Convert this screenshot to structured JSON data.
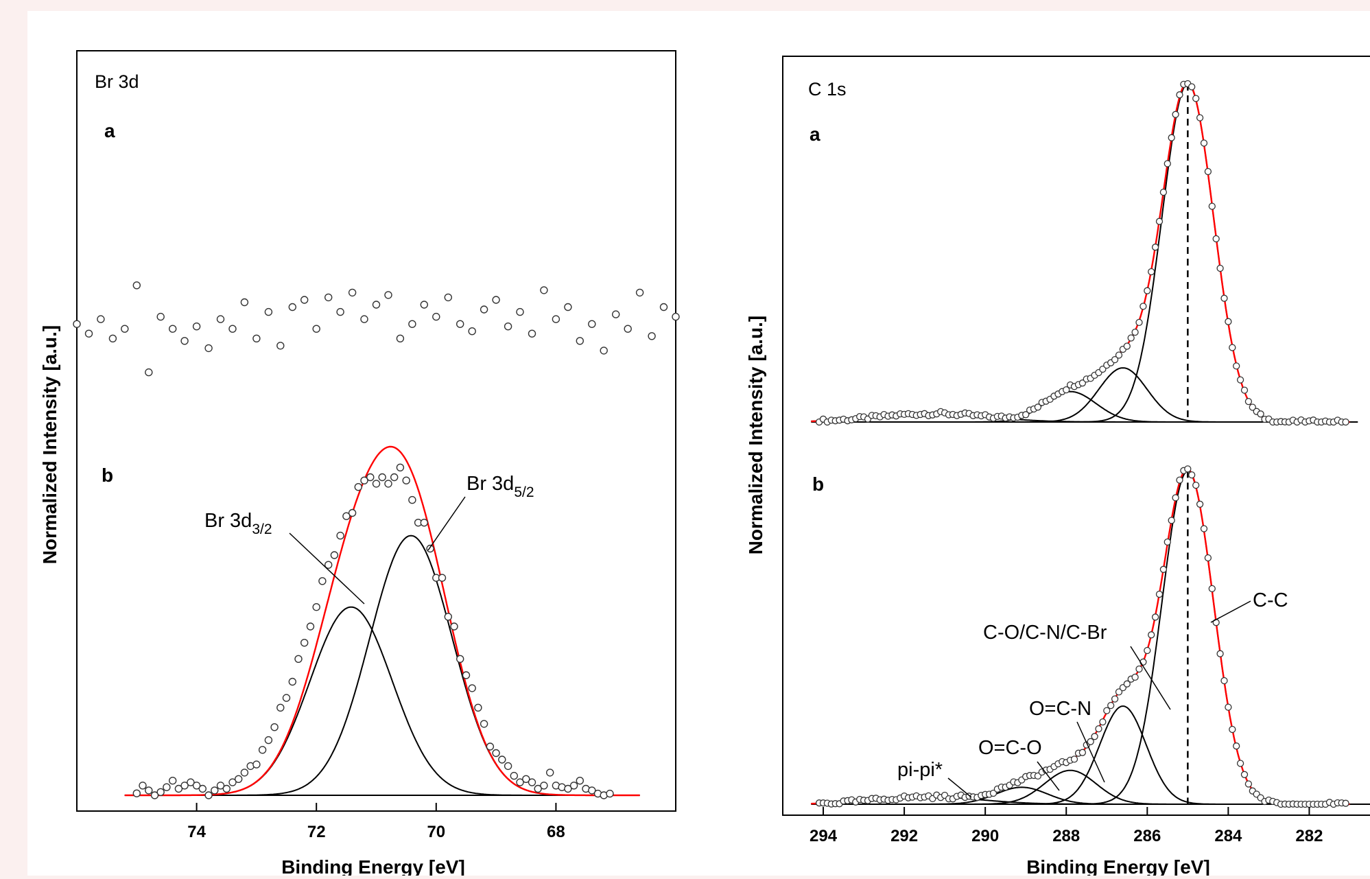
{
  "chart_data": [
    {
      "type": "scatter",
      "title": "Br 3d",
      "xlabel": "Binding Energy [eV]",
      "ylabel": "Normalized Intensity [a.u.]",
      "xlim": [
        76,
        66
      ],
      "x_reversed": true,
      "xticks": [
        74,
        72,
        70,
        68
      ],
      "y_ticks_shown": false,
      "grid": false,
      "panels": [
        {
          "label": "a",
          "description_series": [
            {
              "name": "",
              "kind": "points",
              "marker": "open-circle",
              "color": "#000000",
              "x": [
                76.0,
                75.8,
                75.6,
                75.4,
                75.2,
                75.0,
                74.8,
                74.6,
                74.4,
                74.2,
                74.0,
                73.8,
                73.6,
                73.4,
                73.2,
                73.0,
                72.8,
                72.6,
                72.4,
                72.2,
                72.0,
                71.8,
                71.6,
                71.4,
                71.2,
                71.0,
                70.8,
                70.6,
                70.4,
                70.2,
                70.0,
                69.8,
                69.6,
                69.4,
                69.2,
                69.0,
                68.8,
                68.6,
                68.4,
                68.2,
                68.0,
                67.8,
                67.6,
                67.4,
                67.2,
                67.0,
                66.8,
                66.6,
                66.4,
                66.2,
                66.0
              ],
              "y": [
                0.42,
                0.38,
                0.44,
                0.36,
                0.4,
                0.58,
                0.22,
                0.45,
                0.4,
                0.35,
                0.41,
                0.32,
                0.44,
                0.4,
                0.51,
                0.36,
                0.47,
                0.33,
                0.49,
                0.52,
                0.4,
                0.53,
                0.47,
                0.55,
                0.44,
                0.5,
                0.54,
                0.36,
                0.42,
                0.5,
                0.45,
                0.53,
                0.42,
                0.39,
                0.48,
                0.52,
                0.41,
                0.47,
                0.38,
                0.56,
                0.44,
                0.49,
                0.35,
                0.42,
                0.31,
                0.46,
                0.4,
                0.55,
                0.37,
                0.49,
                0.45
              ]
            }
          ]
        },
        {
          "label": "b",
          "series": [
            {
              "name": "",
              "kind": "points",
              "marker": "open-circle",
              "color": "#000000",
              "x": [
                75.0,
                74.9,
                74.8,
                74.7,
                74.6,
                74.5,
                74.4,
                74.3,
                74.2,
                74.1,
                74.0,
                73.9,
                73.8,
                73.7,
                73.6,
                73.5,
                73.4,
                73.3,
                73.2,
                73.1,
                73.0,
                72.9,
                72.8,
                72.7,
                72.6,
                72.5,
                72.4,
                72.3,
                72.2,
                72.1,
                72.0,
                71.9,
                71.8,
                71.7,
                71.6,
                71.5,
                71.4,
                71.3,
                71.2,
                71.1,
                71.0,
                70.9,
                70.8,
                70.7,
                70.6,
                70.5,
                70.4,
                70.3,
                70.2,
                70.1,
                70.0,
                69.9,
                69.8,
                69.7,
                69.6,
                69.5,
                69.4,
                69.3,
                69.2,
                69.1,
                69.0,
                68.9,
                68.8,
                68.7,
                68.6,
                68.5,
                68.4,
                68.3,
                68.2,
                68.1,
                68.0,
                67.9,
                67.8,
                67.7,
                67.6,
                67.5,
                67.4,
                67.3,
                67.2,
                67.1
              ],
              "y": [
                0.006,
                0.03,
                0.015,
                0.0,
                0.01,
                0.025,
                0.045,
                0.02,
                0.03,
                0.04,
                0.03,
                0.02,
                0.0,
                0.015,
                0.03,
                0.02,
                0.04,
                0.05,
                0.07,
                0.09,
                0.095,
                0.14,
                0.17,
                0.21,
                0.27,
                0.3,
                0.35,
                0.42,
                0.47,
                0.52,
                0.58,
                0.66,
                0.71,
                0.74,
                0.8,
                0.86,
                0.87,
                0.95,
                0.97,
                0.98,
                0.96,
                0.98,
                0.96,
                0.98,
                1.01,
                0.97,
                0.91,
                0.84,
                0.84,
                0.76,
                0.67,
                0.67,
                0.55,
                0.52,
                0.42,
                0.37,
                0.33,
                0.27,
                0.22,
                0.15,
                0.13,
                0.11,
                0.09,
                0.06,
                0.04,
                0.05,
                0.04,
                0.02,
                0.03,
                0.07,
                0.03,
                0.025,
                0.02,
                0.03,
                0.045,
                0.02,
                0.015,
                0.005,
                0.0,
                0.005
              ]
            },
            {
              "name": "",
              "kind": "line",
              "color": "#ff0000",
              "peaks": [
                {
                  "center": 71.42,
                  "height": 0.58,
                  "fwhm": 1.62
                },
                {
                  "center": 70.42,
                  "height": 0.8,
                  "fwhm": 1.62
                }
              ]
            },
            {
              "name": "Br 3d",
              "kind": "line",
              "color": "#000000",
              "peak": {
                "center": 71.42,
                "height": 0.58,
                "fwhm": 1.62
              }
            },
            {
              "name": "Br 3d",
              "kind": "line",
              "color": "#000000",
              "peak": {
                "center": 70.42,
                "height": 0.8,
                "fwhm": 1.62
              }
            }
          ],
          "annotations": [
            {
              "text": "Br 3d",
              "sub": "3/2"
            },
            {
              "text": "Br 3d",
              "sub": "5/2"
            }
          ]
        }
      ]
    },
    {
      "type": "scatter",
      "title": "C 1s",
      "xlabel": "Binding Energy [eV]",
      "ylabel": "Normalized Intensity [a.u.]",
      "xlim": [
        295,
        280.5
      ],
      "x_reversed": true,
      "xticks": [
        294,
        292,
        290,
        288,
        286,
        284,
        282
      ],
      "y_ticks_shown": false,
      "grid": false,
      "reference_line": {
        "x": 285.0,
        "style": "dashed"
      },
      "panels": [
        {
          "label": "a",
          "components": [
            {
              "center": 285.0,
              "height": 1.0,
              "fwhm": 1.5
            },
            {
              "center": 286.6,
              "height": 0.16,
              "fwhm": 1.4
            },
            {
              "center": 287.9,
              "height": 0.09,
              "fwhm": 1.5
            },
            {
              "center": 291.3,
              "height": 0.025,
              "fwhm": 3.2
            }
          ]
        },
        {
          "label": "b",
          "components": [
            {
              "center": 285.0,
              "height": 0.985,
              "fwhm": 1.5
            },
            {
              "center": 286.6,
              "height": 0.29,
              "fwhm": 1.35
            },
            {
              "center": 287.9,
              "height": 0.1,
              "fwhm": 1.5
            },
            {
              "center": 289.1,
              "height": 0.05,
              "fwhm": 1.5
            },
            {
              "center": 291.4,
              "height": 0.022,
              "fwhm": 3.0
            }
          ],
          "annotations": [
            {
              "text": "C-C"
            },
            {
              "text": "C-O/C-N/C-Br"
            },
            {
              "text": "O=C-N"
            },
            {
              "text": "O=C-O"
            },
            {
              "text": "pi-pi*"
            }
          ]
        }
      ]
    }
  ]
}
